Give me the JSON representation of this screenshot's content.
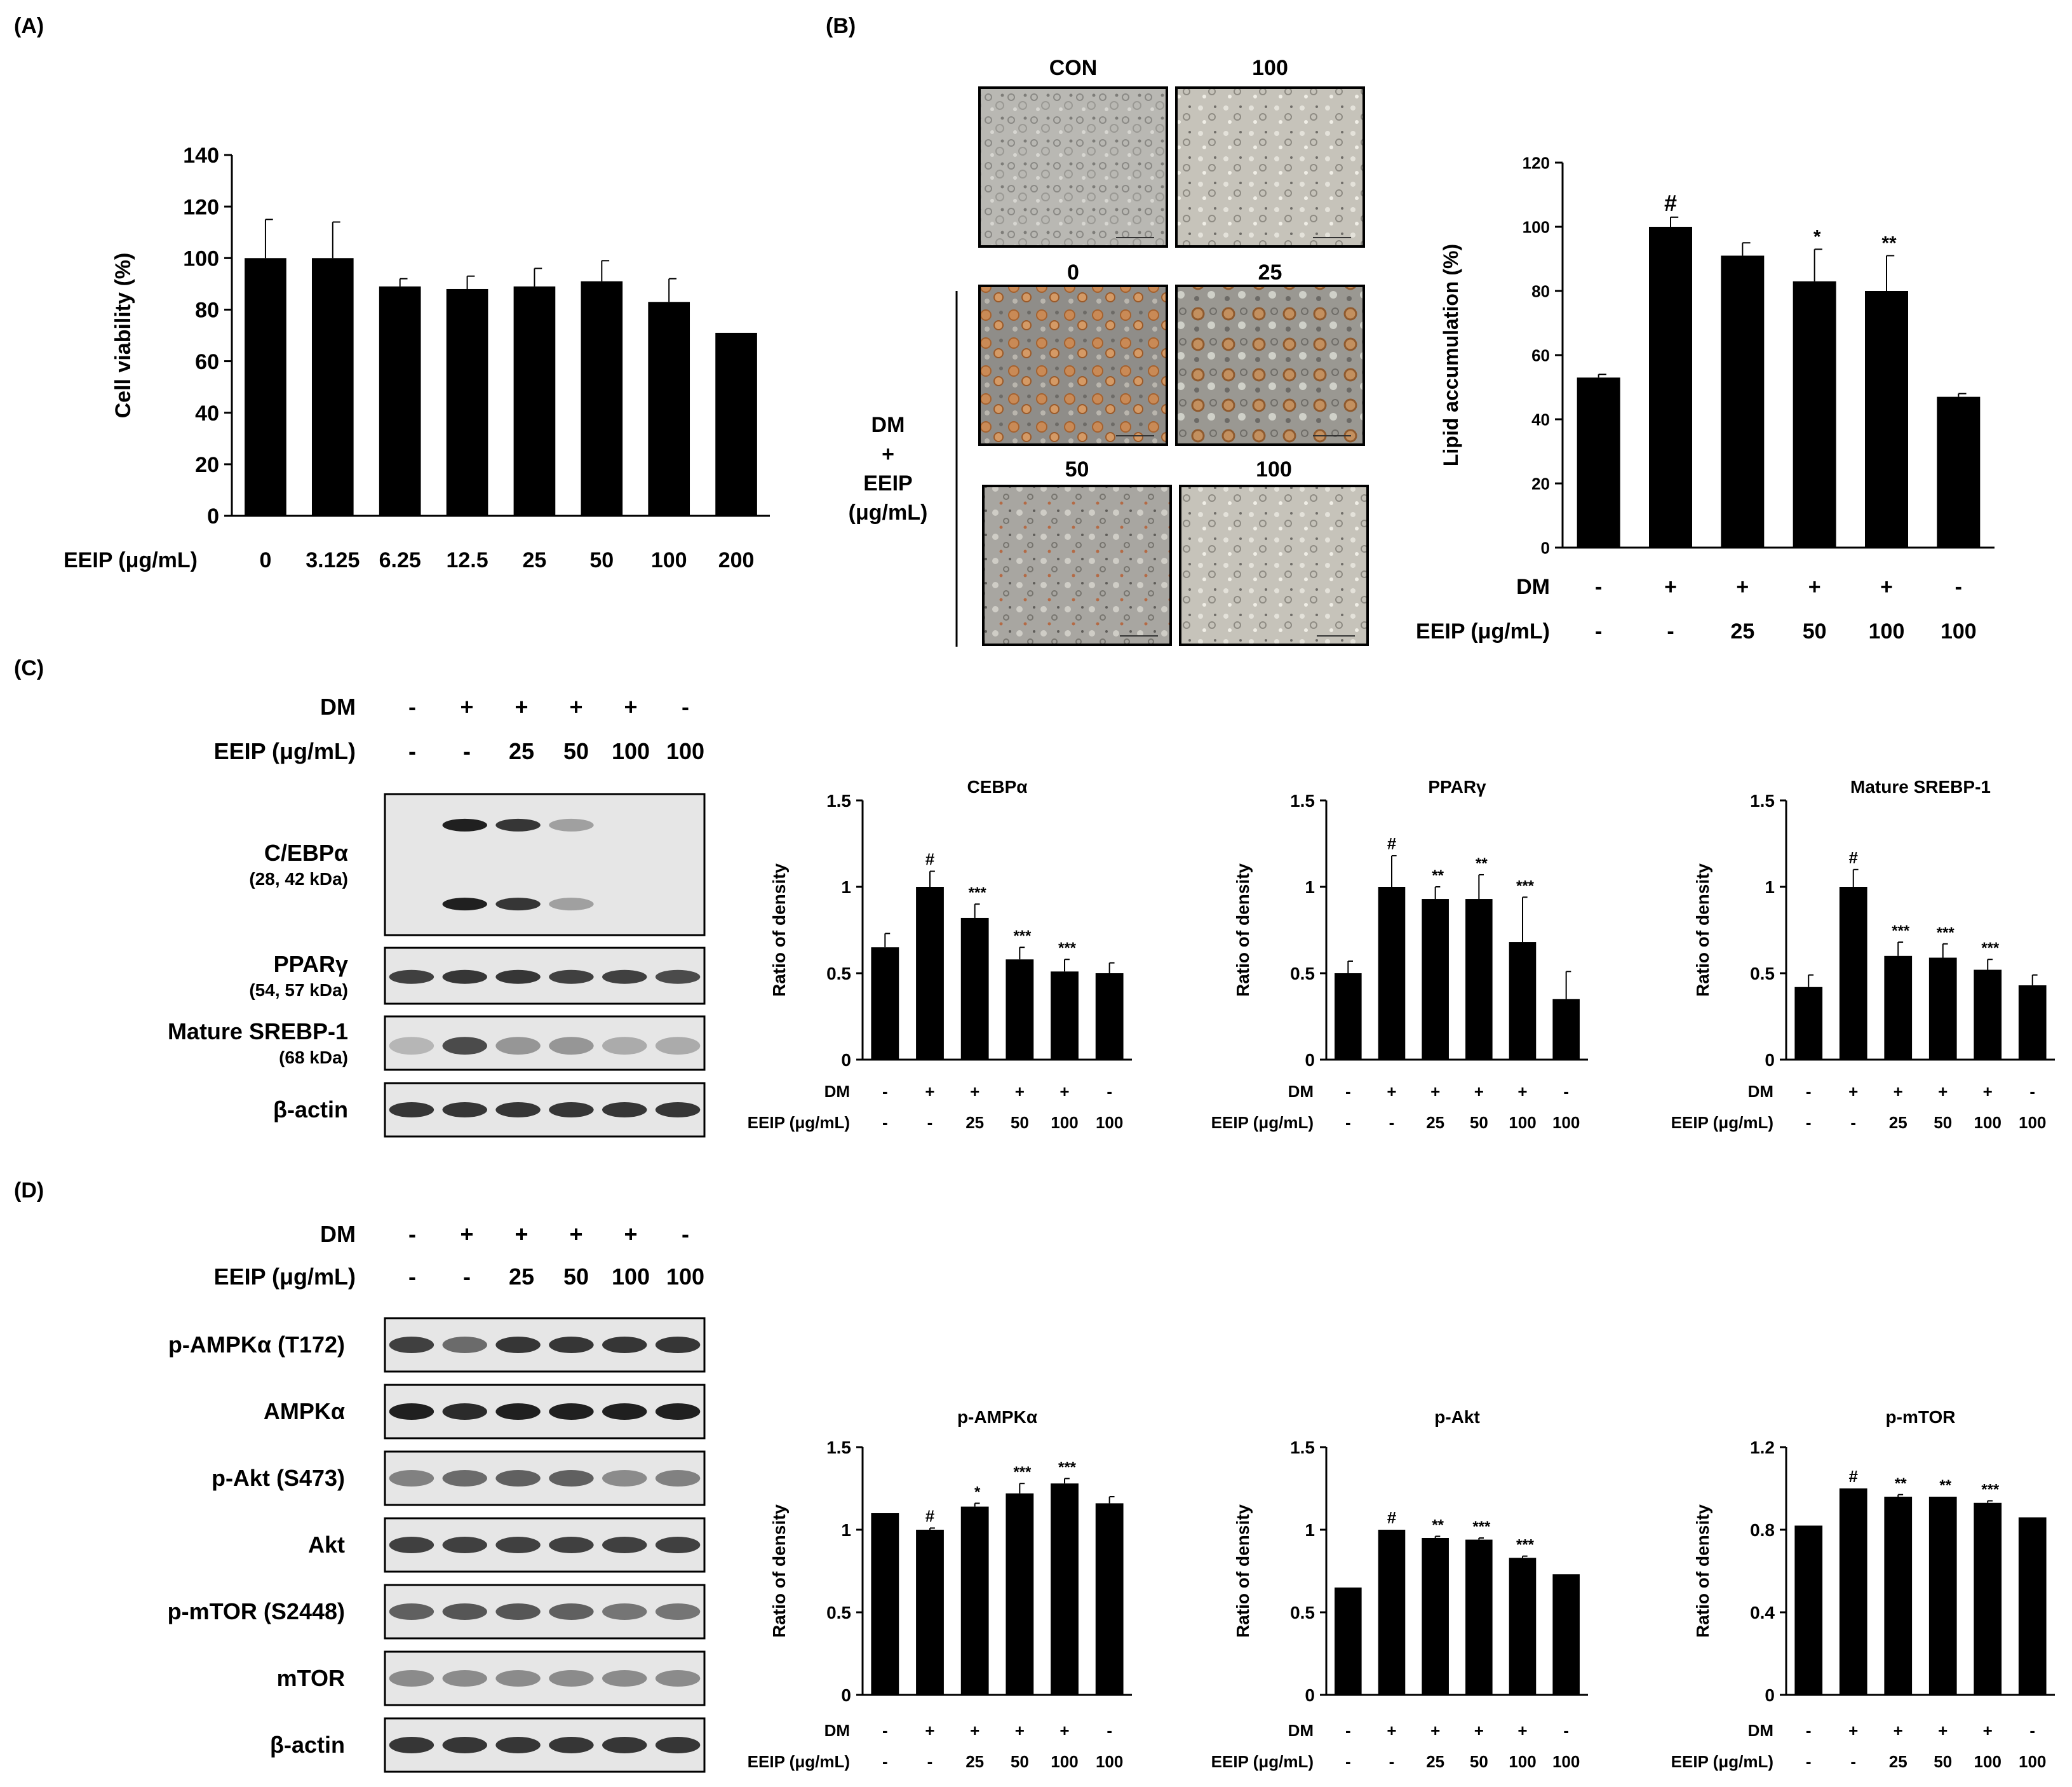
{
  "panel_labels": [
    "(A)",
    "(B)",
    "(C)",
    "(D)"
  ],
  "micrographs": {
    "top_labels": [
      "CON",
      "100"
    ],
    "mid_labels": [
      "0",
      "25"
    ],
    "low_labels": [
      "50",
      "100"
    ],
    "side_label_lines": [
      "DM",
      "+",
      "EEIP",
      "(μg/mL)"
    ]
  },
  "blots_c": {
    "row_labels": {
      "dm": "DM",
      "eeip": "EEIP (μg/mL)",
      "dm_signs": [
        "-",
        "+",
        "+",
        "+",
        "+",
        "-"
      ],
      "eeip_vals": [
        "-",
        "-",
        "25",
        "50",
        "100",
        "100"
      ]
    },
    "bands": [
      {
        "name": "C/EBPα",
        "sub": "(28, 42 kDa)"
      },
      {
        "name": "PPARγ",
        "sub": "(54, 57 kDa)"
      },
      {
        "name": "Mature  SREBP-1",
        "sub": "(68 kDa)"
      },
      {
        "name": "β-actin",
        "sub": ""
      }
    ]
  },
  "blots_d": {
    "row_labels": {
      "dm": "DM",
      "eeip": "EEIP (μg/mL)",
      "dm_signs": [
        "-",
        "+",
        "+",
        "+",
        "+",
        "-"
      ],
      "eeip_vals": [
        "-",
        "-",
        "25",
        "50",
        "100",
        "100"
      ]
    },
    "bands": [
      {
        "name": "p-AMPKα (T172)"
      },
      {
        "name": "AMPKα"
      },
      {
        "name": "p-Akt (S473)"
      },
      {
        "name": "Akt"
      },
      {
        "name": "p-mTOR (S2448)"
      },
      {
        "name": "mTOR"
      },
      {
        "name": "β-actin"
      }
    ]
  },
  "chart_data": [
    {
      "id": "A",
      "type": "bar",
      "title": "",
      "ylabel": "Cell viability (%)",
      "xlabel_row": "EEIP (μg/mL)",
      "categories": [
        "0",
        "3.125",
        "6.25",
        "12.5",
        "25",
        "50",
        "100",
        "200"
      ],
      "values": [
        100,
        100,
        89,
        88,
        89,
        91,
        83,
        71
      ],
      "errors": [
        15,
        14,
        3,
        5,
        7,
        8,
        9,
        0
      ],
      "ylim": [
        0,
        140
      ],
      "yticks": [
        "0",
        "20",
        "40",
        "60",
        "80",
        "100",
        "120",
        "140"
      ],
      "annotations": [
        "",
        "",
        "",
        "",
        "",
        "",
        "",
        ""
      ]
    },
    {
      "id": "B",
      "type": "bar",
      "title": "",
      "ylabel": "Lipid accumulation (%)",
      "row1_label": "DM",
      "row2_label": "EEIP (μg/mL)",
      "row1": [
        "-",
        "+",
        "+",
        "+",
        "+",
        "-"
      ],
      "row2": [
        "-",
        "-",
        "25",
        "50",
        "100",
        "100"
      ],
      "values": [
        53,
        100,
        91,
        83,
        80,
        47
      ],
      "errors": [
        1,
        3,
        4,
        10,
        11,
        1
      ],
      "ylim": [
        0,
        120
      ],
      "yticks": [
        "0",
        "20",
        "40",
        "60",
        "80",
        "100",
        "120"
      ],
      "annotations": [
        "",
        "#",
        "",
        "*",
        "**",
        ""
      ]
    },
    {
      "id": "C1",
      "type": "bar",
      "title": "CEBPα",
      "ylabel": "Ratio of density",
      "row1_label": "DM",
      "row2_label": "EEIP  (μg/mL)",
      "row1": [
        "-",
        "+",
        "+",
        "+",
        "+",
        "-"
      ],
      "row2": [
        "-",
        "-",
        "25",
        "50",
        "100",
        "100"
      ],
      "values": [
        0.65,
        1.0,
        0.82,
        0.58,
        0.51,
        0.5
      ],
      "errors": [
        0.08,
        0.09,
        0.08,
        0.07,
        0.07,
        0.06
      ],
      "ylim": [
        0,
        1.5
      ],
      "yticks": [
        "0",
        "0.5",
        "1",
        "1.5"
      ],
      "annotations": [
        "",
        "#",
        "***",
        "***",
        "***",
        ""
      ]
    },
    {
      "id": "C2",
      "type": "bar",
      "title": "PPARγ",
      "ylabel": "Ratio of density",
      "row1_label": "DM",
      "row2_label": "EEIP  (μg/mL)",
      "row1": [
        "-",
        "+",
        "+",
        "+",
        "+",
        "-"
      ],
      "row2": [
        "-",
        "-",
        "25",
        "50",
        "100",
        "100"
      ],
      "values": [
        0.5,
        1.0,
        0.93,
        0.93,
        0.68,
        0.35
      ],
      "errors": [
        0.07,
        0.18,
        0.07,
        0.14,
        0.26,
        0.16
      ],
      "ylim": [
        0,
        1.5
      ],
      "yticks": [
        "0",
        "0.5",
        "1",
        "1.5"
      ],
      "annotations": [
        "",
        "#",
        "**",
        "**",
        "***",
        ""
      ]
    },
    {
      "id": "C3",
      "type": "bar",
      "title": "Mature  SREBP-1",
      "ylabel": "Ratio of density",
      "row1_label": "DM",
      "row2_label": "EEIP  (μg/mL)",
      "row1": [
        "-",
        "+",
        "+",
        "+",
        "+",
        "-"
      ],
      "row2": [
        "-",
        "-",
        "25",
        "50",
        "100",
        "100"
      ],
      "values": [
        0.42,
        1.0,
        0.6,
        0.59,
        0.52,
        0.43
      ],
      "errors": [
        0.07,
        0.1,
        0.08,
        0.08,
        0.06,
        0.06
      ],
      "ylim": [
        0,
        1.5
      ],
      "yticks": [
        "0",
        "0.5",
        "1",
        "1.5"
      ],
      "annotations": [
        "",
        "#",
        "***",
        "***",
        "***",
        ""
      ]
    },
    {
      "id": "D1",
      "type": "bar",
      "title": "p-AMPKα",
      "ylabel": "Ratio of density",
      "row1_label": "DM",
      "row2_label": "EEIP  (μg/mL)",
      "row1": [
        "-",
        "+",
        "+",
        "+",
        "+",
        "-"
      ],
      "row2": [
        "-",
        "-",
        "25",
        "50",
        "100",
        "100"
      ],
      "values": [
        1.1,
        1.0,
        1.14,
        1.22,
        1.28,
        1.16
      ],
      "errors": [
        0.0,
        0.01,
        0.02,
        0.06,
        0.03,
        0.04
      ],
      "ylim": [
        0,
        1.5
      ],
      "yticks": [
        "0",
        "0.5",
        "1",
        "1.5"
      ],
      "annotations": [
        "",
        "#",
        "*",
        "***",
        "***",
        ""
      ]
    },
    {
      "id": "D2",
      "type": "bar",
      "title": "p-Akt",
      "ylabel": "Ratio of density",
      "row1_label": "DM",
      "row2_label": "EEIP  (μg/mL)",
      "row1": [
        "-",
        "+",
        "+",
        "+",
        "+",
        "-"
      ],
      "row2": [
        "-",
        "-",
        "25",
        "50",
        "100",
        "100"
      ],
      "values": [
        0.65,
        1.0,
        0.95,
        0.94,
        0.83,
        0.73
      ],
      "errors": [
        0.0,
        0.0,
        0.01,
        0.01,
        0.01,
        0.0
      ],
      "ylim": [
        0,
        1.5
      ],
      "yticks": [
        "0",
        "0.5",
        "1",
        "1.5"
      ],
      "annotations": [
        "",
        "#",
        "**",
        "***",
        "***",
        ""
      ]
    },
    {
      "id": "D3",
      "type": "bar",
      "title": "p-mTOR",
      "ylabel": "Ratio of density",
      "row1_label": "DM",
      "row2_label": "EEIP  (μg/mL)",
      "row1": [
        "-",
        "+",
        "+",
        "+",
        "+",
        "-"
      ],
      "row2": [
        "-",
        "-",
        "25",
        "50",
        "100",
        "100"
      ],
      "values": [
        0.82,
        1.0,
        0.96,
        0.96,
        0.93,
        0.86
      ],
      "errors": [
        0.0,
        0.0,
        0.01,
        0.0,
        0.01,
        0.0
      ],
      "ylim": [
        0,
        1.2
      ],
      "yticks": [
        "0",
        "0.4",
        "0.8",
        "1.2"
      ],
      "annotations": [
        "",
        "#",
        "**",
        "**",
        "***",
        ""
      ]
    }
  ]
}
